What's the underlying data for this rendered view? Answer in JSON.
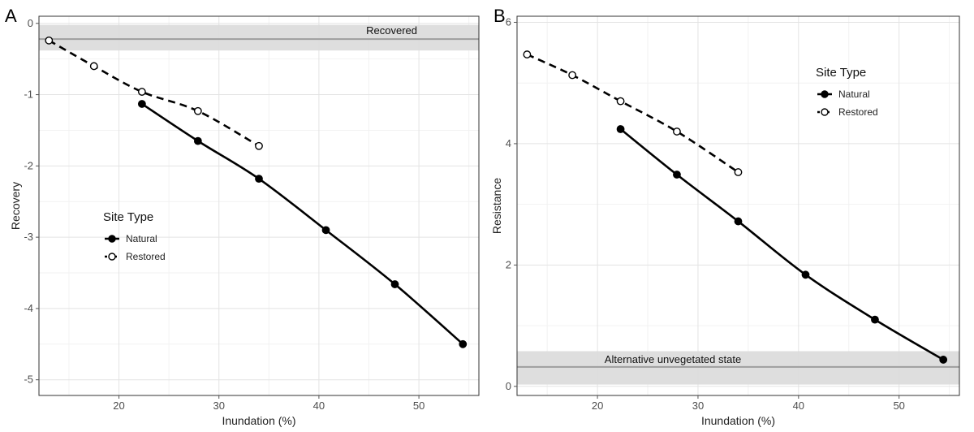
{
  "colors": {
    "natural": "#000000",
    "restored": "#000000",
    "restored_fill": "#ffffff",
    "grid_major": "#e3e3e3",
    "grid_minor": "#f2f2f2",
    "band_fill": "#dadada",
    "band_line": "#9e9e9e",
    "panel_border": "#333333"
  },
  "chart_data": [
    {
      "type": "line",
      "panel": "A",
      "xlabel": "Inundation (%)",
      "ylabel": "Recovery",
      "xlim": [
        12,
        56
      ],
      "ylim": [
        -5.22,
        0.1
      ],
      "x_ticks": [
        "20",
        "30",
        "40",
        "50"
      ],
      "y_ticks": [
        "0",
        "-1",
        "-2",
        "-3",
        "-4",
        "-5"
      ],
      "grid": true,
      "legend": {
        "title": "Site Type",
        "position": "center-left",
        "entries": [
          "Natural",
          "Restored"
        ]
      },
      "series": [
        {
          "name": "Natural",
          "line_style": "solid",
          "marker": "filled-circle",
          "x": [
            22.3,
            27.9,
            34.0,
            40.7,
            47.6,
            54.4
          ],
          "y": [
            -1.13,
            -1.65,
            -2.18,
            -2.9,
            -3.66,
            -4.5
          ]
        },
        {
          "name": "Restored",
          "line_style": "dashed",
          "marker": "open-circle",
          "x": [
            13.0,
            17.5,
            22.3,
            27.9,
            34.0
          ],
          "y": [
            -0.24,
            -0.6,
            -0.96,
            -1.23,
            -1.72
          ]
        }
      ],
      "reference_band": {
        "label": "Recovered",
        "center": -0.22,
        "range": [
          -0.38,
          -0.02
        ]
      }
    },
    {
      "type": "line",
      "panel": "B",
      "xlabel": "Inundation (%)",
      "ylabel": "Resistance",
      "xlim": [
        12,
        56
      ],
      "ylim": [
        -0.15,
        6.1
      ],
      "x_ticks": [
        "20",
        "30",
        "40",
        "50"
      ],
      "y_ticks": [
        "0",
        "2",
        "4",
        "6"
      ],
      "grid": true,
      "legend": {
        "title": "Site Type",
        "position": "top-right",
        "entries": [
          "Natural",
          "Restored"
        ]
      },
      "series": [
        {
          "name": "Natural",
          "line_style": "solid",
          "marker": "filled-circle",
          "x": [
            22.3,
            27.9,
            34.0,
            40.7,
            47.6,
            54.4
          ],
          "y": [
            4.24,
            3.49,
            2.72,
            1.84,
            1.1,
            0.44
          ]
        },
        {
          "name": "Restored",
          "line_style": "dashed",
          "marker": "open-circle",
          "x": [
            13.0,
            17.5,
            22.3,
            27.9,
            34.0
          ],
          "y": [
            5.47,
            5.13,
            4.7,
            4.2,
            3.53
          ]
        }
      ],
      "reference_band": {
        "label": "Alternative unvegetated state",
        "center": 0.32,
        "range": [
          0.03,
          0.58
        ]
      }
    }
  ]
}
